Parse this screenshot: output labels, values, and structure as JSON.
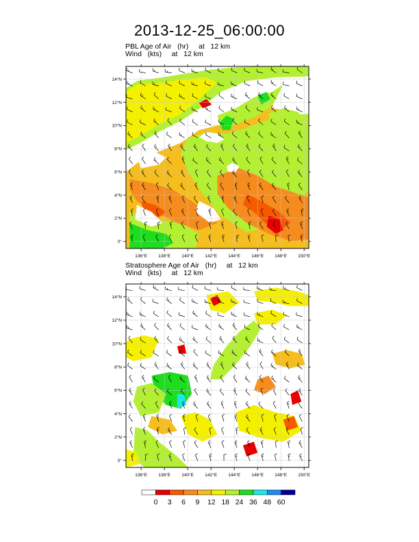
{
  "title": "2013-12-25_06:00:00",
  "panels": [
    {
      "id": "pbl",
      "label_line1": "PBL Age of Air   (hr)     at   12 km",
      "label_line2": "Wind   (kts)     at   12 km"
    },
    {
      "id": "strat",
      "label_line1": "Stratosphere Age of Air   (hr)     at   12 km",
      "label_line2": "Wind   (kts)     at   12 km"
    }
  ],
  "axes": {
    "x_ticks": [
      "136°E",
      "138°E",
      "140°E",
      "142°E",
      "144°E",
      "146°E",
      "148°E",
      "150°E"
    ],
    "x_values": [
      136,
      138,
      140,
      142,
      144,
      146,
      148,
      150
    ],
    "y_ticks": [
      "0°",
      "2°N",
      "4°N",
      "6°N",
      "8°N",
      "10°N",
      "12°N",
      "14°N"
    ],
    "y_values": [
      0,
      2,
      4,
      6,
      8,
      10,
      12,
      14
    ],
    "lon_range": [
      134.7,
      150.4
    ],
    "lat_range": [
      -0.6,
      15.1
    ],
    "grid": true
  },
  "colorbar": {
    "labels": [
      "0",
      "3",
      "6",
      "9",
      "12",
      "18",
      "24",
      "36",
      "48",
      "60"
    ],
    "colors": [
      "#ffffff",
      "#e60000",
      "#f55a00",
      "#f58c1e",
      "#f5be1e",
      "#f5f000",
      "#b4f032",
      "#1edc1e",
      "#1ee6e6",
      "#1e8cf0",
      "#000096"
    ]
  },
  "colors": {
    "wind_barb": "#000000",
    "grid": "#c8c8c8"
  }
}
